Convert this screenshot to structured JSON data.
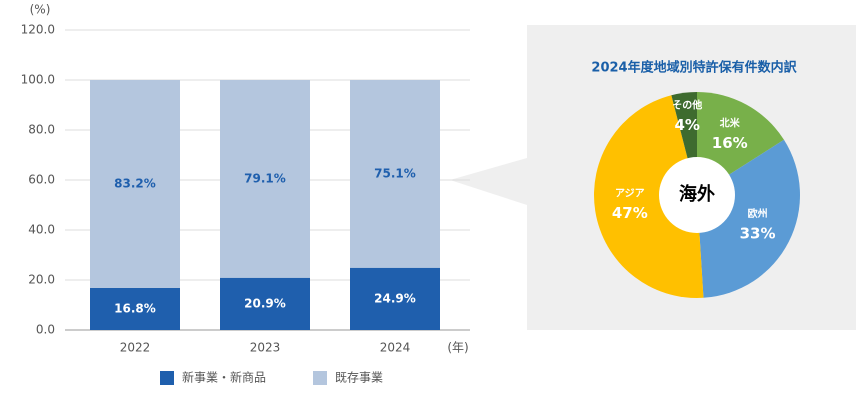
{
  "chart_data": [
    {
      "type": "bar",
      "stacked": true,
      "y_label": "(%)",
      "x_label": "(年)",
      "categories": [
        "2022",
        "2023",
        "2024"
      ],
      "series": [
        {
          "name": "新事業・新商品",
          "color": "#1f5fad",
          "label_color": "#ffffff",
          "values": [
            16.8,
            20.9,
            24.9
          ],
          "value_labels": [
            "16.8%",
            "20.9%",
            "24.9%"
          ]
        },
        {
          "name": "既存事業",
          "color": "#b4c6de",
          "label_color": "#1f5fad",
          "values": [
            83.2,
            79.1,
            75.1
          ],
          "value_labels": [
            "83.2%",
            "79.1%",
            "75.1%"
          ]
        }
      ],
      "ylim": [
        0,
        120
      ],
      "yticks": [
        {
          "value": 0,
          "label": "0.0"
        },
        {
          "value": 20,
          "label": "20.0"
        },
        {
          "value": 40,
          "label": "40.0"
        },
        {
          "value": 60,
          "label": "60.0"
        },
        {
          "value": 80,
          "label": "80.0"
        },
        {
          "value": 100,
          "label": "100.0"
        },
        {
          "value": 120,
          "label": "120.0"
        }
      ],
      "grid": true
    },
    {
      "type": "pie",
      "donut": true,
      "title": "2024年度地域別特許保有件数内訳",
      "center_label": "海外",
      "categories": [
        "北米",
        "欧州",
        "アジア",
        "その他"
      ],
      "values": [
        16,
        33,
        47,
        4
      ],
      "value_labels": [
        "16%",
        "33%",
        "47%",
        "4%"
      ],
      "colors": [
        "#78b04a",
        "#5b9bd5",
        "#ffc000",
        "#3e6b2f"
      ]
    }
  ]
}
